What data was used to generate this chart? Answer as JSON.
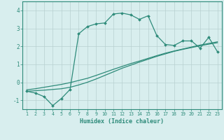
{
  "xlabel": "Humidex (Indice chaleur)",
  "x": [
    1,
    2,
    3,
    4,
    5,
    6,
    7,
    8,
    9,
    10,
    11,
    12,
    13,
    14,
    15,
    16,
    17,
    18,
    19,
    20,
    21,
    22,
    23
  ],
  "line1_y": [
    -0.5,
    -0.6,
    -0.8,
    -1.3,
    -0.9,
    -0.4,
    2.7,
    3.1,
    3.25,
    3.3,
    3.8,
    3.85,
    3.75,
    3.5,
    3.7,
    2.6,
    2.1,
    2.05,
    2.3,
    2.3,
    1.9,
    2.5,
    1.7
  ],
  "line2_y": [
    -0.5,
    -0.47,
    -0.44,
    -0.4,
    -0.36,
    -0.28,
    -0.15,
    0.0,
    0.18,
    0.38,
    0.58,
    0.78,
    0.95,
    1.12,
    1.28,
    1.44,
    1.58,
    1.72,
    1.83,
    1.93,
    2.03,
    2.12,
    2.2
  ],
  "line3_y": [
    -0.42,
    -0.36,
    -0.28,
    -0.2,
    -0.12,
    -0.02,
    0.1,
    0.22,
    0.38,
    0.55,
    0.72,
    0.88,
    1.04,
    1.18,
    1.33,
    1.48,
    1.62,
    1.74,
    1.85,
    1.96,
    2.07,
    2.16,
    2.25
  ],
  "line_color": "#2e8b7a",
  "bg_color": "#d8eeee",
  "grid_color": "#b8d0d0",
  "ylim": [
    -1.5,
    4.5
  ],
  "xlim": [
    0.5,
    23.5
  ],
  "xticks": [
    1,
    2,
    3,
    4,
    5,
    6,
    7,
    8,
    9,
    10,
    11,
    12,
    13,
    14,
    15,
    16,
    17,
    18,
    19,
    20,
    21,
    22,
    23
  ],
  "yticks": [
    -1,
    0,
    1,
    2,
    3,
    4
  ]
}
